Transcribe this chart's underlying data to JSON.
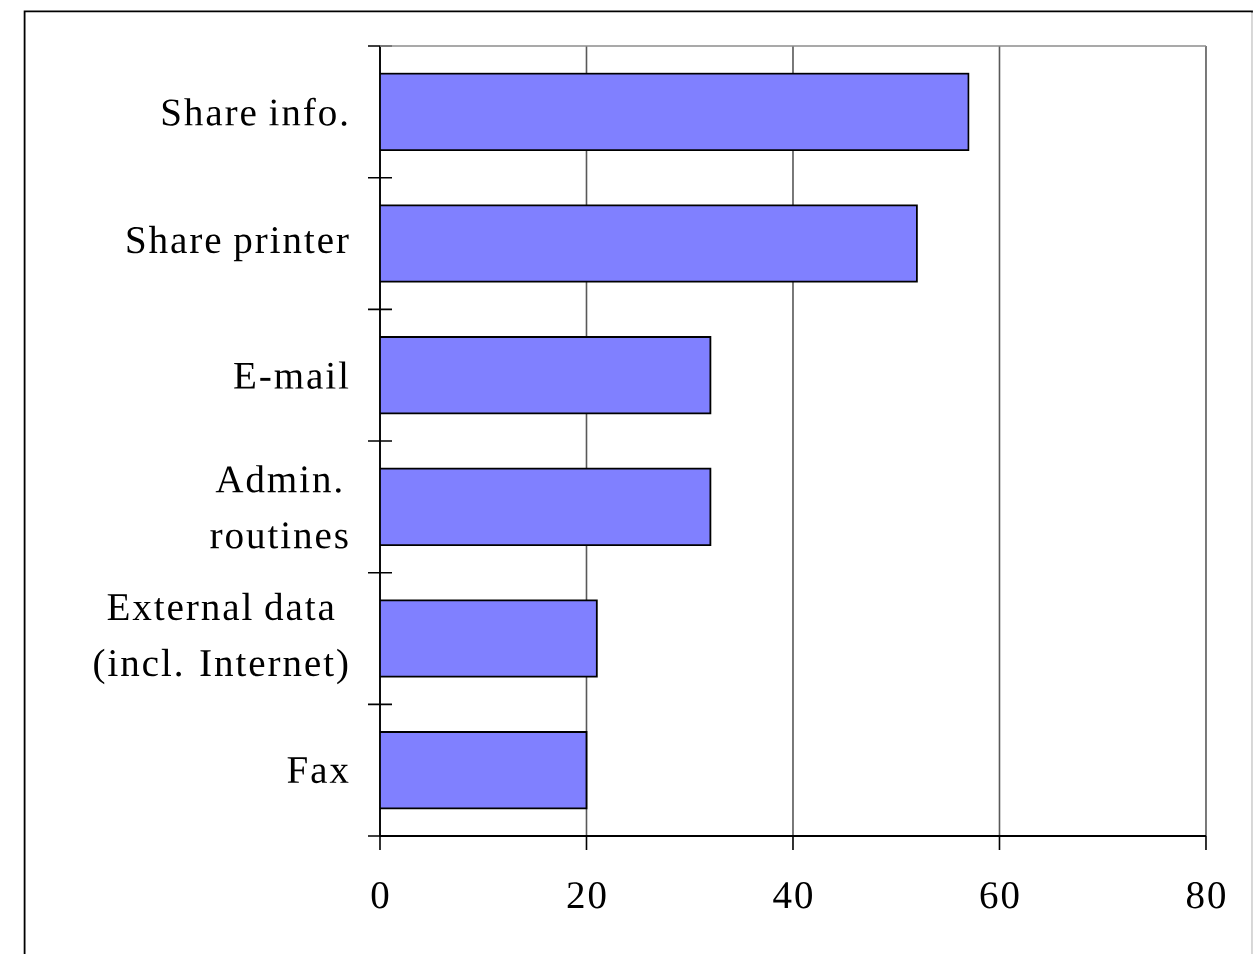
{
  "chart_data": {
    "type": "bar",
    "orientation": "horizontal",
    "categories": [
      "Share info.",
      "Share printer",
      "E-mail",
      "Admin.\nroutines",
      "External data\n(incl. Internet)",
      "Fax"
    ],
    "values": [
      57,
      52,
      32,
      32,
      21,
      20
    ],
    "color": "#8080ff",
    "xlim": [
      0,
      80
    ],
    "xticks": [
      0,
      20,
      40,
      60,
      80
    ],
    "grid": "x"
  }
}
